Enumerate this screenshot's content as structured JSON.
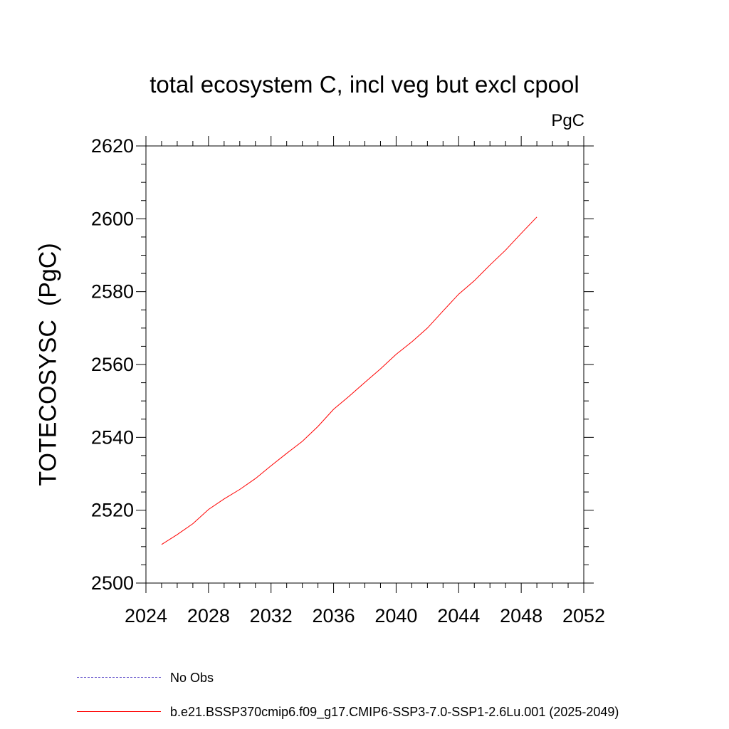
{
  "chart_data": {
    "type": "line",
    "title": "total ecosystem C, incl veg but excl cpool",
    "units_label": "PgC",
    "xlabel": "",
    "ylabel": "TOTECOSYSC  (PgC)",
    "xlim": [
      2024,
      2052
    ],
    "ylim": [
      2500,
      2620
    ],
    "xticks": [
      2024,
      2028,
      2032,
      2036,
      2040,
      2044,
      2048,
      2052
    ],
    "yticks": [
      2500,
      2520,
      2540,
      2560,
      2580,
      2600,
      2620
    ],
    "grid": false,
    "legend_position": "bottom",
    "series": [
      {
        "name": "b.e21.BSSP370cmip6.f09_g17.CMIP6-SSP3-7.0-SSP1-2.6Lu.001 (2025-2049)",
        "color": "#ff0000",
        "style": "solid",
        "x": [
          2025,
          2026,
          2027,
          2028,
          2029,
          2030,
          2031,
          2032,
          2033,
          2034,
          2035,
          2036,
          2037,
          2038,
          2039,
          2040,
          2041,
          2042,
          2043,
          2044,
          2045,
          2046,
          2047,
          2048,
          2049
        ],
        "y": [
          2510.6,
          2513.3,
          2516.3,
          2520.2,
          2523.1,
          2525.7,
          2528.7,
          2532.2,
          2535.6,
          2538.9,
          2543.0,
          2547.7,
          2551.3,
          2555.1,
          2558.8,
          2562.8,
          2566.2,
          2570.0,
          2574.7,
          2579.3,
          2583.0,
          2587.3,
          2591.4,
          2596.0,
          2600.5
        ]
      }
    ],
    "legend": [
      {
        "label": "No Obs",
        "color": "#6a5acd",
        "style": "dashed"
      },
      {
        "label": "b.e21.BSSP370cmip6.f09_g17.CMIP6-SSP3-7.0-SSP1-2.6Lu.001 (2025-2049)",
        "color": "#ff0000",
        "style": "solid"
      }
    ]
  }
}
